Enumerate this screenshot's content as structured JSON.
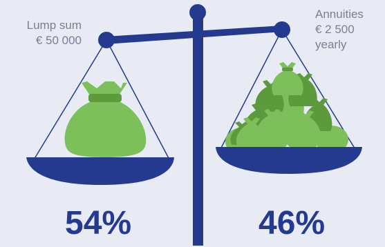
{
  "left_pan": {
    "title": "Lump sum",
    "amount": "€ 50 000",
    "share": "54%"
  },
  "right_pan": {
    "title": "Annuities",
    "amount": "€ 2 500",
    "period": "yearly",
    "share": "46%"
  },
  "colors": {
    "background": "#e8eaf4",
    "scale": "#233a8f",
    "bag_light": "#7dbf5a",
    "bag_dark": "#5d9a3c",
    "label_text": "#7a7f96"
  }
}
